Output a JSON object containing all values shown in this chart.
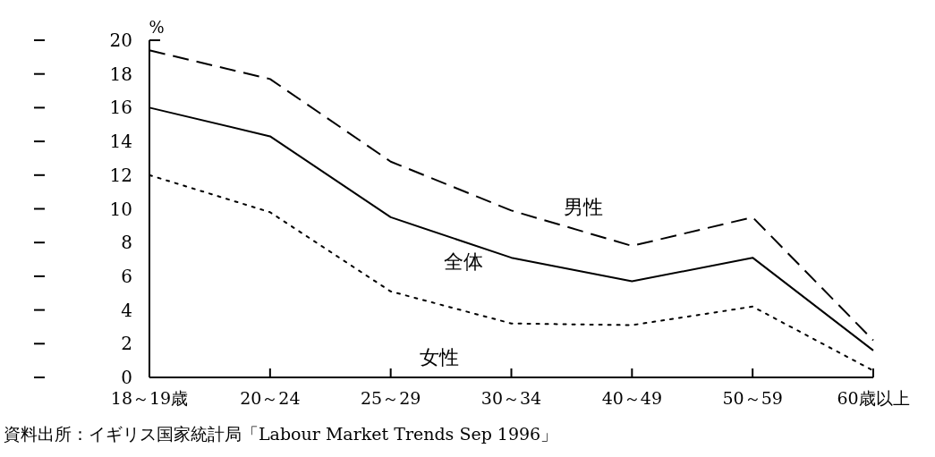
{
  "chart_data": {
    "type": "line",
    "categories": [
      "18～19歳",
      "20～24",
      "25～29",
      "30～34",
      "40～49",
      "50～59",
      "60歳以上"
    ],
    "ylabel": "%",
    "ylim": [
      0,
      20
    ],
    "yticks": [
      0,
      2,
      4,
      6,
      8,
      10,
      12,
      14,
      16,
      18,
      20
    ],
    "series": [
      {
        "name": "男性",
        "color": "#000000",
        "line_style": "dashed",
        "values": [
          19.4,
          17.7,
          12.8,
          9.9,
          7.8,
          9.5,
          2.2
        ]
      },
      {
        "name": "全体",
        "color": "#000000",
        "line_style": "solid",
        "values": [
          16.0,
          14.3,
          9.5,
          7.1,
          5.7,
          7.1,
          1.6
        ]
      },
      {
        "name": "女性",
        "color": "#000000",
        "line_style": "dotted",
        "values": [
          12.0,
          9.8,
          5.1,
          3.2,
          3.1,
          4.2,
          0.4
        ]
      }
    ],
    "grid": false,
    "annotations": [
      "資料出所：イギリス国家統計局「Labour Market Trends Sep 1996」"
    ]
  }
}
